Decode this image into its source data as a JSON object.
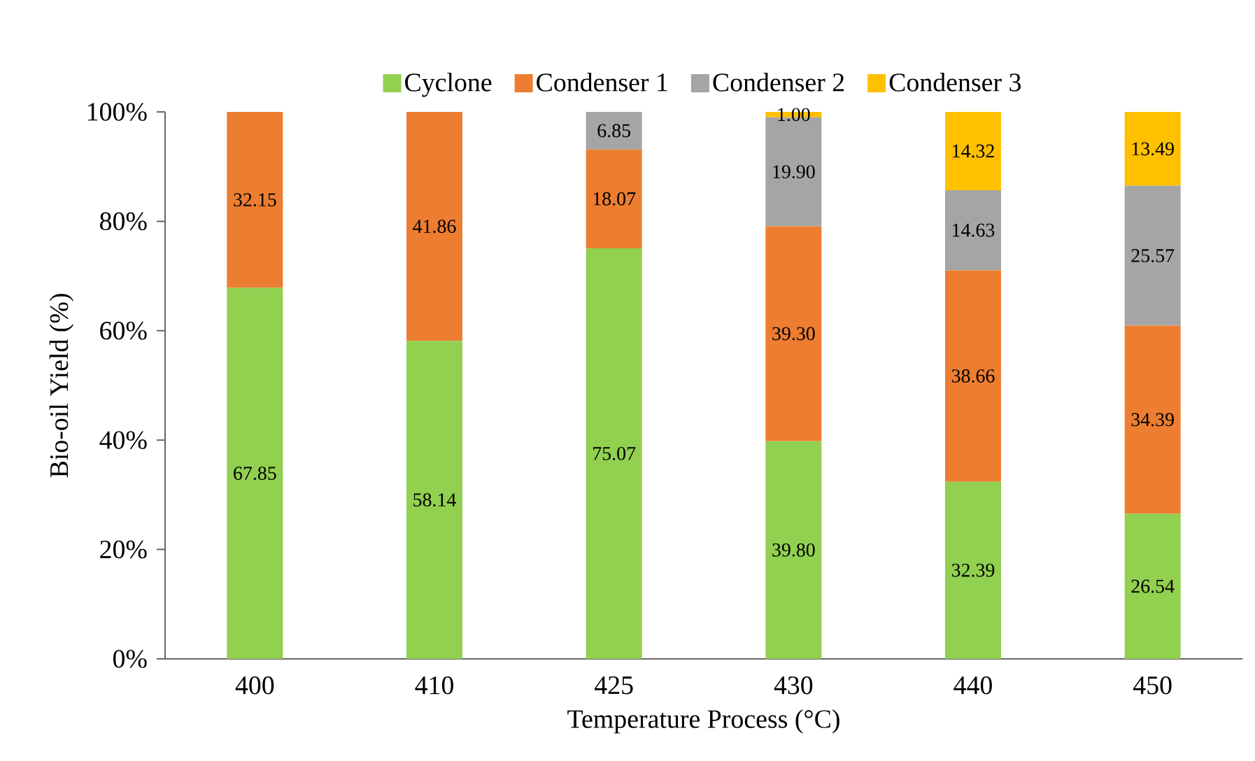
{
  "chart_data": {
    "type": "bar",
    "stacked": true,
    "xlabel": "Temperature Process (°C)",
    "ylabel": "Bio-oil Yield (%)",
    "categories": [
      "400",
      "410",
      "425",
      "430",
      "440",
      "450"
    ],
    "series": [
      {
        "name": "Cyclone",
        "color": "#92d050",
        "values": [
          67.85,
          58.14,
          75.07,
          39.8,
          32.39,
          26.54
        ],
        "value_labels": [
          "67.85",
          "58.14",
          "75.07",
          "39.80",
          "32.39",
          "26.54"
        ]
      },
      {
        "name": "Condenser 1",
        "color": "#ed7d31",
        "values": [
          32.15,
          41.86,
          18.07,
          39.3,
          38.66,
          34.39
        ],
        "value_labels": [
          "32.15",
          "41.86",
          "18.07",
          "39.30",
          "38.66",
          "34.39"
        ]
      },
      {
        "name": "Condenser 2",
        "color": "#a5a5a5",
        "values": [
          0,
          0,
          6.85,
          19.9,
          14.63,
          25.57
        ],
        "value_labels": [
          null,
          null,
          "6.85",
          "19.90",
          "14.63",
          "25.57"
        ]
      },
      {
        "name": "Condenser 3",
        "color": "#ffc000",
        "values": [
          0,
          0,
          0,
          1.0,
          14.32,
          13.49
        ],
        "value_labels": [
          null,
          null,
          null,
          "1.00",
          "14.32",
          "13.49"
        ]
      }
    ],
    "ylim": [
      0,
      100
    ],
    "yticks": [
      {
        "value": 0,
        "label": "0%"
      },
      {
        "value": 20,
        "label": "20%"
      },
      {
        "value": 40,
        "label": "40%"
      },
      {
        "value": 60,
        "label": "60%"
      },
      {
        "value": 80,
        "label": "80%"
      },
      {
        "value": 100,
        "label": "100%"
      }
    ],
    "grid": false,
    "legend": "top"
  }
}
